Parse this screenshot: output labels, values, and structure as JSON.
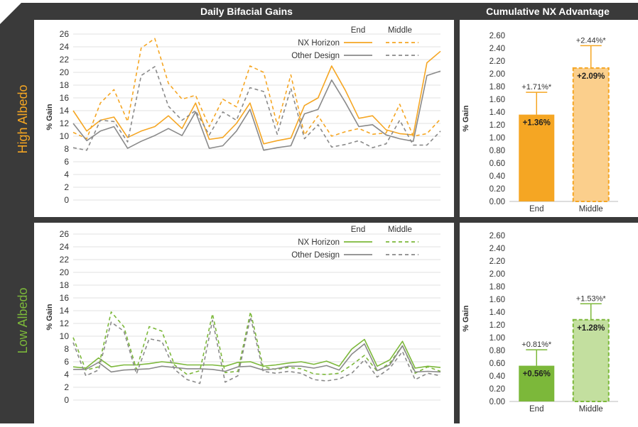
{
  "headers": {
    "daily": "Daily Bifacial Gains",
    "cumulative": "Cumulative NX Advantage"
  },
  "rows": [
    {
      "label": "High Albedo",
      "color": "#f5a623"
    },
    {
      "label": "Low Albedo",
      "color": "#7cb83a"
    }
  ],
  "colors": {
    "frame": "#3a3a3a",
    "grid": "#e2e2e2",
    "other": "#8a8a8a",
    "high_light": "#fbcf8c",
    "low_light": "#c3df9f"
  },
  "chart_data": [
    {
      "id": "high-daily",
      "type": "line",
      "ylabel": "% Gain",
      "ylim": [
        0,
        26
      ],
      "yticks": [
        "0",
        "2",
        "4",
        "6",
        "8",
        "10",
        "12",
        "14",
        "16",
        "18",
        "20",
        "22",
        "24",
        "26"
      ],
      "legend": {
        "col_end": "End",
        "col_middle": "Middle",
        "nx": "NX Horizon",
        "other": "Other Design"
      },
      "series": [
        {
          "name": "NX Horizon End",
          "values": [
            14,
            10.8,
            12.5,
            13,
            9.8,
            10.8,
            11.5,
            13.2,
            11.2,
            15.2,
            9.5,
            9.8,
            12,
            15.2,
            8.8,
            9.3,
            9.7,
            14.8,
            16,
            21,
            17.2,
            12.8,
            13.2,
            11,
            10.4,
            10.2,
            21.5,
            23.3
          ]
        },
        {
          "name": "NX Horizon Middle",
          "values": [
            10.6,
            9.6,
            15.2,
            17.3,
            12.3,
            23.8,
            25.3,
            18.3,
            15.8,
            16.4,
            11.5,
            15.8,
            14.6,
            21,
            20,
            11.8,
            19.6,
            10.2,
            13.2,
            10,
            10.7,
            11.2,
            10.3,
            10.5,
            15,
            10,
            10.4,
            12.7
          ]
        },
        {
          "name": "Other Design End",
          "values": [
            12,
            9.3,
            10.8,
            11.5,
            8.1,
            9.2,
            10.1,
            11.2,
            10.1,
            13.8,
            8.1,
            8.5,
            10.8,
            14.2,
            7.8,
            8.2,
            8.5,
            13.5,
            14.2,
            18.8,
            15.3,
            11.5,
            11.8,
            10.2,
            9.6,
            9.2,
            19.5,
            20.2
          ]
        },
        {
          "name": "Other Design Middle",
          "values": [
            8.2,
            7.8,
            12.5,
            12.3,
            9.1,
            19.5,
            20.9,
            14.7,
            12.5,
            14,
            10.2,
            13.8,
            12.5,
            17.6,
            17,
            10.3,
            17.5,
            9.6,
            11.8,
            8.3,
            8.7,
            9.3,
            8.2,
            8.8,
            12.5,
            8.6,
            8.6,
            10.8
          ]
        }
      ]
    },
    {
      "id": "high-cum",
      "type": "bar",
      "ylabel": "% Gain",
      "ylim": [
        0,
        2.6
      ],
      "yticks": [
        "0.00",
        "0.20",
        "0.40",
        "0.60",
        "0.80",
        "1.00",
        "1.20",
        "1.40",
        "1.60",
        "1.80",
        "2.00",
        "2.20",
        "2.40",
        "2.60"
      ],
      "categories": [
        "End",
        "Middle"
      ],
      "values": [
        1.36,
        2.09
      ],
      "labels": [
        "+1.36%",
        "+2.09%"
      ],
      "error_tops": [
        1.71,
        2.44
      ],
      "error_labels": [
        "+1.71%*",
        "+2.44%*"
      ]
    },
    {
      "id": "low-daily",
      "type": "line",
      "ylabel": "% Gain",
      "ylim": [
        0,
        26
      ],
      "yticks": [
        "0",
        "2",
        "4",
        "6",
        "8",
        "10",
        "12",
        "14",
        "16",
        "18",
        "20",
        "22",
        "24",
        "26"
      ],
      "legend": {
        "col_end": "End",
        "col_middle": "Middle",
        "nx": "NX Horizon",
        "other": "Other Design"
      },
      "series": [
        {
          "name": "NX Horizon End",
          "values": [
            5.2,
            5,
            6.6,
            5.2,
            5.5,
            5.5,
            5.7,
            6,
            5.8,
            5.5,
            5.5,
            5.5,
            5.3,
            5.9,
            6,
            5.3,
            5.5,
            5.8,
            6,
            5.6,
            6.1,
            5.3,
            8,
            9.5,
            5.3,
            6.3,
            9.2,
            5,
            5.3,
            5.1
          ]
        },
        {
          "name": "NX Horizon Middle",
          "values": [
            9.8,
            4.7,
            5.2,
            13.8,
            11.5,
            4.8,
            11.5,
            10.8,
            5.5,
            4,
            4.6,
            13.5,
            4.3,
            4.5,
            13.8,
            5.2,
            4.8,
            5.1,
            4.9,
            4.1,
            4,
            4.2,
            5.5,
            7,
            4.5,
            5.8,
            8.5,
            4.2,
            5.2,
            4.5
          ]
        },
        {
          "name": "Other Design End",
          "values": [
            4.8,
            4.8,
            5.9,
            4.4,
            4.7,
            4.8,
            4.9,
            5.3,
            5.1,
            4.9,
            4.9,
            4.8,
            4.5,
            5.2,
            5.3,
            4.7,
            4.9,
            5.3,
            5.3,
            5,
            5.4,
            4.7,
            7.2,
            8.8,
            4.6,
            5.5,
            8.5,
            4.4,
            4.5,
            4.4
          ]
        },
        {
          "name": "Other Design Middle",
          "values": [
            9,
            3.8,
            4.7,
            12.2,
            10.8,
            4.1,
            9.6,
            9.2,
            4.8,
            3.2,
            2.6,
            12.5,
            2.8,
            3.8,
            13,
            4.5,
            4.2,
            4.5,
            4.2,
            3.2,
            3,
            3.3,
            4.2,
            6.3,
            3.6,
            5,
            7.6,
            3.2,
            4.2,
            3.8
          ]
        }
      ]
    },
    {
      "id": "low-cum",
      "type": "bar",
      "ylabel": "% Gain",
      "ylim": [
        0,
        2.6
      ],
      "yticks": [
        "0.00",
        "0.20",
        "0.40",
        "0.60",
        "0.80",
        "1.00",
        "1.20",
        "1.40",
        "1.60",
        "1.80",
        "2.00",
        "2.20",
        "2.40",
        "2.60"
      ],
      "categories": [
        "End",
        "Middle"
      ],
      "values": [
        0.56,
        1.28
      ],
      "labels": [
        "+0.56%",
        "+1.28%"
      ],
      "error_tops": [
        0.81,
        1.53
      ],
      "error_labels": [
        "+0.81%*",
        "+1.53%*"
      ]
    }
  ]
}
